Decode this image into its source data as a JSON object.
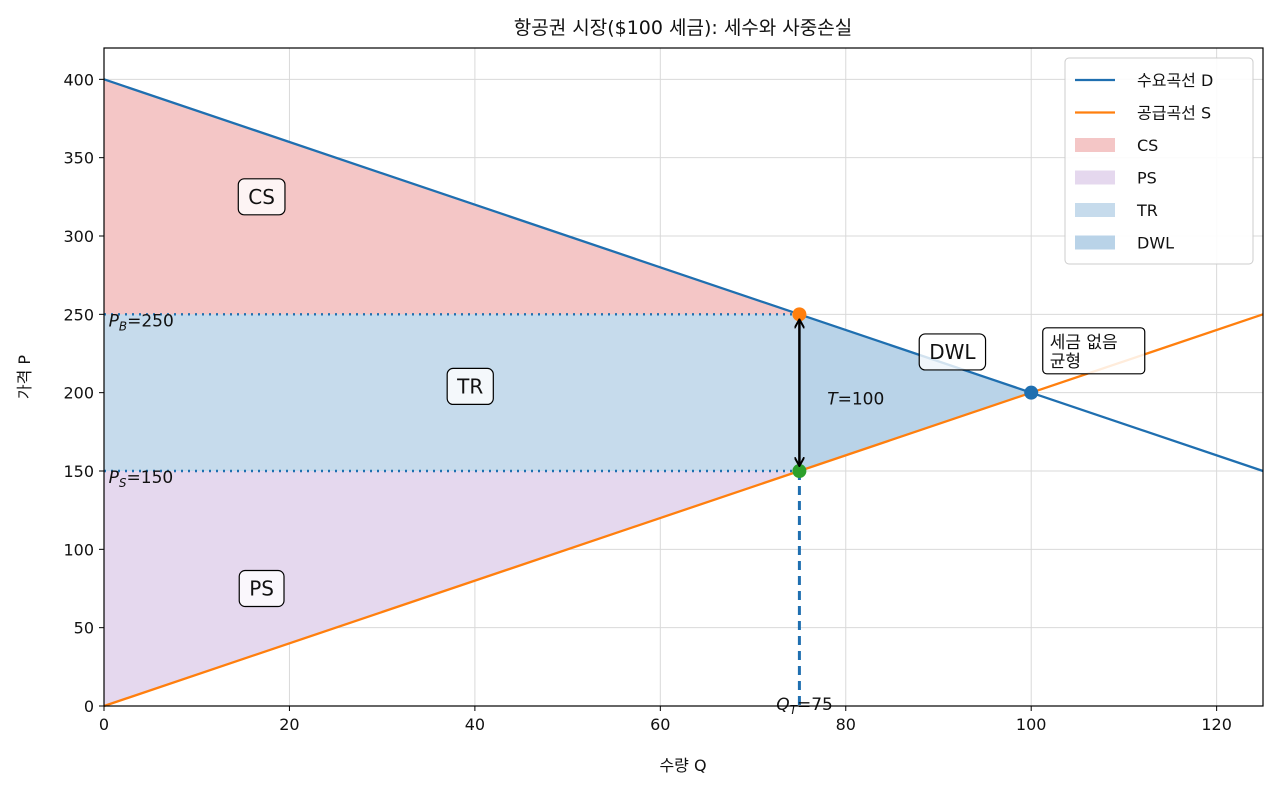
{
  "colors": {
    "demand": "#1f6fb0",
    "supply": "#ff7f0e",
    "cs_fill": "#f4c6c6",
    "ps_fill": "#e5d8ee",
    "tr_fill": "#c6dbec",
    "dwl_fill": "#b9d3e8",
    "green_point": "#2ca02c",
    "orange_point": "#ff7f0e",
    "blue_point": "#1f6fb0"
  },
  "chart_data": {
    "type": "line",
    "title": "항공권 시장($100 세금): 세수와 사중손실",
    "xlabel": "수량 Q",
    "ylabel": "가격 P",
    "xlim": [
      0,
      125
    ],
    "ylim": [
      0,
      420
    ],
    "xticks": [
      0,
      20,
      40,
      60,
      80,
      100,
      120
    ],
    "yticks": [
      0,
      50,
      100,
      150,
      200,
      250,
      300,
      350,
      400
    ],
    "grid": true,
    "legend_position": "top-right",
    "series": [
      {
        "name": "수요곡선 D",
        "x": [
          0,
          125
        ],
        "y": [
          400,
          150
        ]
      },
      {
        "name": "공급곡선 S",
        "x": [
          0,
          125
        ],
        "y": [
          0,
          250
        ]
      }
    ],
    "legend": [
      {
        "label": "수요곡선 D",
        "kind": "line",
        "color": "#1f6fb0"
      },
      {
        "label": "공급곡선 S",
        "kind": "line",
        "color": "#ff7f0e"
      },
      {
        "label": "CS",
        "kind": "patch",
        "color": "#f4c6c6"
      },
      {
        "label": "PS",
        "kind": "patch",
        "color": "#e5d8ee"
      },
      {
        "label": "TR",
        "kind": "patch",
        "color": "#c6dbec"
      },
      {
        "label": "DWL",
        "kind": "patch",
        "color": "#b9d3e8"
      }
    ],
    "areas": {
      "CS": [
        [
          0,
          400
        ],
        [
          75,
          250
        ],
        [
          0,
          250
        ]
      ],
      "TR": [
        [
          0,
          250
        ],
        [
          75,
          250
        ],
        [
          75,
          150
        ],
        [
          0,
          150
        ]
      ],
      "PS": [
        [
          0,
          150
        ],
        [
          75,
          150
        ],
        [
          0,
          0
        ]
      ],
      "DWL": [
        [
          75,
          250
        ],
        [
          100,
          200
        ],
        [
          75,
          150
        ]
      ]
    },
    "points": [
      {
        "x": 75,
        "y": 250,
        "color": "#ff7f0e"
      },
      {
        "x": 75,
        "y": 150,
        "color": "#2ca02c"
      },
      {
        "x": 100,
        "y": 200,
        "color": "#1f6fb0"
      }
    ],
    "buyer_price": 250,
    "seller_price": 150,
    "tax_quantity": 75,
    "tax": 100,
    "annotations": {
      "pb": {
        "x": 0.5,
        "y": 250,
        "sym": "P",
        "sub": "B",
        "rest": "=250"
      },
      "ps": {
        "x": 0.5,
        "y": 150,
        "sym": "P",
        "sub": "S",
        "rest": "=150"
      },
      "qt": {
        "x": 72.5,
        "y": 5,
        "sym": "Q",
        "sub": "T",
        "rest": "=75"
      },
      "t": {
        "x": 78,
        "y": 200,
        "sym": "T",
        "rest": "=100"
      },
      "boxes": [
        {
          "text": "CS",
          "x": 17,
          "y": 325
        },
        {
          "text": "TR",
          "x": 39.5,
          "y": 204
        },
        {
          "text": "PS",
          "x": 17,
          "y": 75
        },
        {
          "text": "DWL",
          "x": 91.5,
          "y": 226
        }
      ],
      "eq_label": {
        "lines": [
          "세금 없음",
          "균형"
        ],
        "x": 102,
        "y": 228
      }
    }
  }
}
